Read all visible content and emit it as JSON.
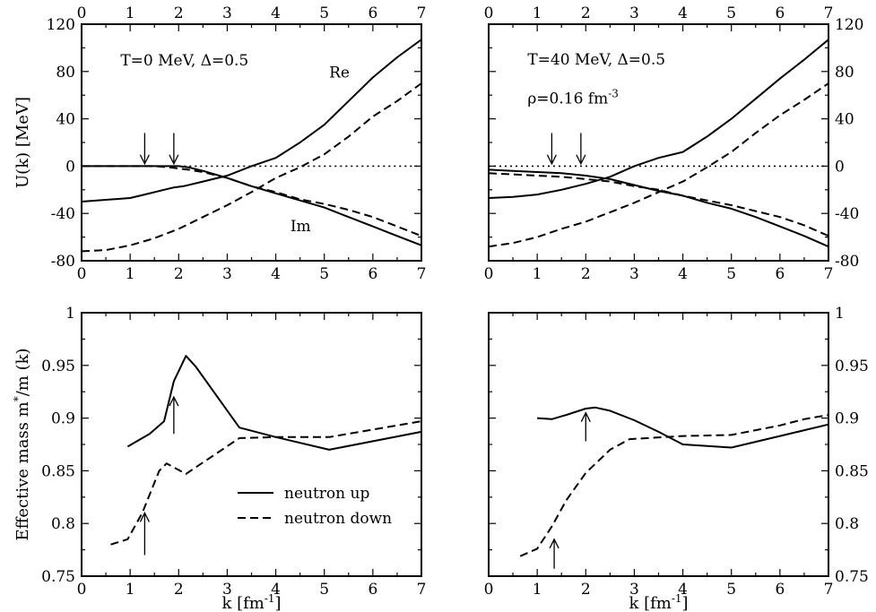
{
  "chart_data": [
    {
      "id": "top-left",
      "type": "line",
      "xlim": [
        0,
        7
      ],
      "ylim": [
        -80,
        120
      ],
      "xticks": [
        0,
        1,
        2,
        3,
        4,
        5,
        6,
        7
      ],
      "yticks": [
        -80,
        -40,
        0,
        40,
        80,
        120
      ],
      "ylabel": "U(k) [MeV]",
      "y_axis_side": "left",
      "annotations": [
        {
          "text": "T=0 MeV, Δ=0.5",
          "x": 0.8,
          "y": 85
        },
        {
          "text": "Re",
          "x": 5.1,
          "y": 75
        },
        {
          "text": "Im",
          "x": 4.3,
          "y": -55
        }
      ],
      "arrows": [
        {
          "x": 1.3,
          "y_from": 28,
          "y_to": 2
        },
        {
          "x": 1.9,
          "y_from": 28,
          "y_to": 2
        }
      ],
      "series": [
        {
          "name": "Re neutron up",
          "style": "solid",
          "x": [
            0,
            1.0,
            1.3,
            1.7,
            1.9,
            2.1,
            2.5,
            3.0,
            3.5,
            4.0,
            4.5,
            5.0,
            5.5,
            6.0,
            6.5,
            7.0
          ],
          "y": [
            -30,
            -27,
            -24,
            -20,
            -18,
            -17,
            -13,
            -8,
            0,
            7,
            20,
            35,
            55,
            75,
            92,
            107
          ]
        },
        {
          "name": "Re neutron down",
          "style": "dashed",
          "x": [
            0,
            0.5,
            1.0,
            1.5,
            2.0,
            2.5,
            3.0,
            3.5,
            4.0,
            4.5,
            5.0,
            5.5,
            6.0,
            6.5,
            7.0
          ],
          "y": [
            -72,
            -71,
            -67,
            -61,
            -53,
            -43,
            -33,
            -22,
            -10,
            -1,
            10,
            25,
            42,
            55,
            70
          ]
        },
        {
          "name": "Im neutron up",
          "style": "solid",
          "x": [
            0,
            1.0,
            1.5,
            2.0,
            2.2,
            2.5,
            3.0,
            3.5,
            4.0,
            4.5,
            5.0,
            5.5,
            6.0,
            6.5,
            7.0
          ],
          "y": [
            0,
            0,
            0,
            0,
            -1,
            -4,
            -10,
            -17,
            -23,
            -29,
            -35,
            -43,
            -51,
            -59,
            -67
          ]
        },
        {
          "name": "Im neutron down",
          "style": "dashed",
          "x": [
            0,
            1.0,
            1.5,
            1.8,
            2.2,
            2.5,
            3.0,
            3.5,
            4.0,
            4.5,
            5.0,
            5.5,
            6.0,
            6.5,
            7.0
          ],
          "y": [
            0,
            0,
            0,
            -1,
            -3,
            -5,
            -10,
            -17,
            -22,
            -28,
            -32,
            -37,
            -43,
            -51,
            -59
          ]
        },
        {
          "name": "zero reference",
          "style": "dotted",
          "x": [
            2.0,
            7.0
          ],
          "y": [
            0,
            0
          ]
        }
      ]
    },
    {
      "id": "top-right",
      "type": "line",
      "xlim": [
        0,
        7
      ],
      "ylim": [
        -80,
        120
      ],
      "xticks": [
        0,
        1,
        2,
        3,
        4,
        5,
        6,
        7
      ],
      "yticks": [
        -80,
        -40,
        0,
        40,
        80,
        120
      ],
      "ylabel": "",
      "y_axis_side": "right",
      "annotations": [
        {
          "text": "T=40 MeV, Δ=0.5",
          "x": 0.8,
          "y": 86
        },
        {
          "text": "ρ=0.16 fm",
          "sup": "-3",
          "x": 0.8,
          "y": 53
        }
      ],
      "arrows": [
        {
          "x": 1.3,
          "y_from": 28,
          "y_to": 2
        },
        {
          "x": 1.9,
          "y_from": 28,
          "y_to": 2
        }
      ],
      "series": [
        {
          "name": "Re neutron up",
          "style": "solid",
          "x": [
            0,
            0.5,
            1.0,
            1.5,
            2.0,
            2.5,
            3.0,
            3.5,
            4.0,
            4.5,
            5.0,
            5.5,
            6.0,
            6.5,
            7.0
          ],
          "y": [
            -27,
            -26,
            -24,
            -20,
            -15,
            -9,
            0,
            7,
            12,
            25,
            40,
            57,
            74,
            90,
            107
          ]
        },
        {
          "name": "Re neutron down",
          "style": "dashed",
          "x": [
            0,
            0.5,
            1.0,
            1.5,
            2.0,
            2.5,
            3.0,
            3.5,
            4.0,
            4.5,
            5.0,
            5.5,
            6.0,
            6.5,
            7.0
          ],
          "y": [
            -68,
            -65,
            -60,
            -53,
            -47,
            -39,
            -31,
            -22,
            -13,
            -1,
            12,
            28,
            43,
            56,
            70
          ]
        },
        {
          "name": "Im neutron up",
          "style": "solid",
          "x": [
            0,
            0.5,
            1.0,
            1.5,
            2.0,
            2.5,
            3.0,
            3.5,
            4.0,
            4.5,
            5.0,
            5.5,
            6.0,
            6.5,
            7.0
          ],
          "y": [
            -3,
            -4,
            -5,
            -6,
            -8,
            -11,
            -16,
            -21,
            -25,
            -31,
            -36,
            -43,
            -51,
            -59,
            -68
          ]
        },
        {
          "name": "Im neutron down",
          "style": "dashed",
          "x": [
            0,
            0.5,
            1.0,
            1.5,
            2.0,
            2.5,
            3.0,
            3.5,
            4.0,
            4.5,
            5.0,
            5.5,
            6.0,
            6.5,
            7.0
          ],
          "y": [
            -6,
            -7,
            -8,
            -9,
            -11,
            -13,
            -17,
            -20,
            -25,
            -29,
            -33,
            -38,
            -43,
            -50,
            -59
          ]
        },
        {
          "name": "zero reference",
          "style": "dotted",
          "x": [
            0,
            7.0
          ],
          "y": [
            0,
            0
          ]
        }
      ]
    },
    {
      "id": "bottom-left",
      "type": "line",
      "xlim": [
        0,
        7
      ],
      "ylim": [
        0.75,
        1.0
      ],
      "xticks": [
        0,
        1,
        2,
        3,
        4,
        5,
        6,
        7
      ],
      "yticks": [
        0.75,
        0.8,
        0.85,
        0.9,
        0.95,
        1.0
      ],
      "ytick_labels": [
        "0.75",
        "0.8",
        "0.85",
        "0.9",
        "0.95",
        "1"
      ],
      "xlabel": "k [fm",
      "xlabel_sup": "-1",
      "xlabel_tail": "]",
      "ylabel": "Effective mass m",
      "ylabel_sup": "*",
      "ylabel_tail": "/m (k)",
      "y_axis_side": "left",
      "arrows": [
        {
          "x": 1.9,
          "y_from": 0.885,
          "y_to": 0.92
        },
        {
          "x": 1.3,
          "y_from": 0.77,
          "y_to": 0.81
        }
      ],
      "legend": {
        "position": "bottom-center",
        "entries": [
          {
            "label": "neutron up",
            "style": "solid"
          },
          {
            "label": "neutron down",
            "style": "dashed"
          }
        ]
      },
      "series": [
        {
          "name": "neutron up",
          "style": "solid",
          "x": [
            0.95,
            1.4,
            1.7,
            1.9,
            2.15,
            2.35,
            3.25,
            4.0,
            5.1,
            7.0
          ],
          "y": [
            0.873,
            0.885,
            0.897,
            0.935,
            0.959,
            0.949,
            0.891,
            0.882,
            0.87,
            0.887
          ]
        },
        {
          "name": "neutron down",
          "style": "dashed",
          "x": [
            0.6,
            0.95,
            1.25,
            1.6,
            1.75,
            2.15,
            3.25,
            4.0,
            5.1,
            7.0
          ],
          "y": [
            0.78,
            0.785,
            0.81,
            0.85,
            0.857,
            0.847,
            0.881,
            0.882,
            0.882,
            0.897
          ]
        }
      ]
    },
    {
      "id": "bottom-right",
      "type": "line",
      "xlim": [
        0,
        7
      ],
      "ylim": [
        0.75,
        1.0
      ],
      "xticks": [
        0,
        1,
        2,
        3,
        4,
        5,
        6,
        7
      ],
      "yticks": [
        0.75,
        0.8,
        0.85,
        0.9,
        0.95,
        1.0
      ],
      "ytick_labels": [
        "0.75",
        "0.8",
        "0.85",
        "0.9",
        "0.95",
        "1"
      ],
      "xlabel": "k [fm",
      "xlabel_sup": "-1",
      "xlabel_tail": "]",
      "ylabel": "",
      "y_axis_side": "right",
      "arrows": [
        {
          "x": 2.0,
          "y_from": 0.878,
          "y_to": 0.905
        },
        {
          "x": 1.35,
          "y_from": 0.757,
          "y_to": 0.785
        }
      ],
      "series": [
        {
          "name": "neutron up",
          "style": "solid",
          "x": [
            1.0,
            1.3,
            1.6,
            2.0,
            2.2,
            2.5,
            3.0,
            3.5,
            4.0,
            5.0,
            6.0,
            7.0
          ],
          "y": [
            0.9,
            0.899,
            0.903,
            0.909,
            0.91,
            0.907,
            0.898,
            0.887,
            0.875,
            0.872,
            0.883,
            0.894
          ]
        },
        {
          "name": "neutron down",
          "style": "dashed",
          "x": [
            0.65,
            1.0,
            1.3,
            1.6,
            2.0,
            2.5,
            2.9,
            4.0,
            5.0,
            6.0,
            6.5,
            7.0
          ],
          "y": [
            0.769,
            0.776,
            0.797,
            0.822,
            0.848,
            0.87,
            0.88,
            0.883,
            0.884,
            0.893,
            0.899,
            0.903
          ]
        }
      ]
    }
  ]
}
